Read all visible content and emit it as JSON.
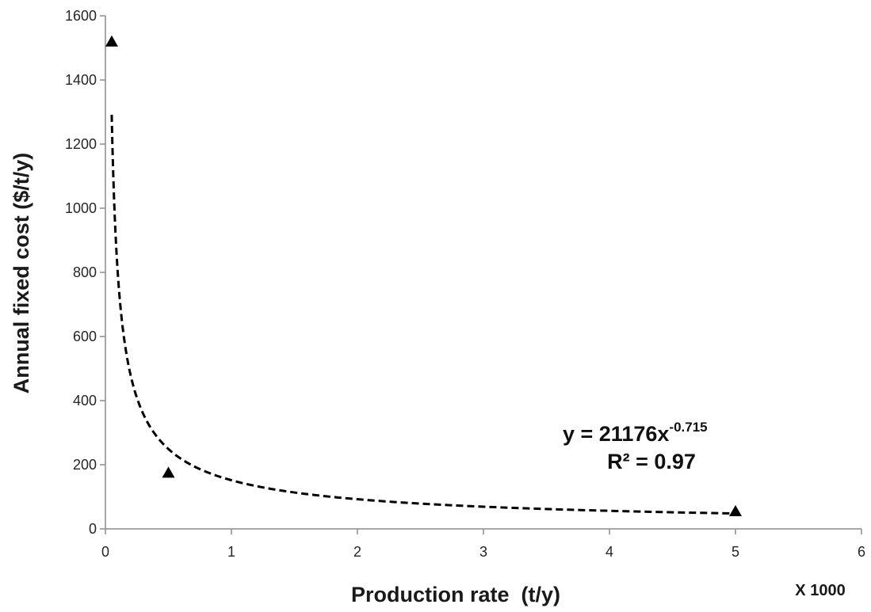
{
  "chart_data": {
    "type": "scatter",
    "xlabel": "Production rate  (t/y)",
    "ylabel": "Annual fixed cost ($/t/y)",
    "x_multiplier_label": "X 1000",
    "xlim": [
      0,
      6
    ],
    "ylim": [
      0,
      1600
    ],
    "x_ticks": [
      0,
      1,
      2,
      3,
      4,
      5,
      6
    ],
    "y_ticks": [
      0,
      200,
      400,
      600,
      800,
      1000,
      1200,
      1400,
      1600
    ],
    "grid": false,
    "series": [
      {
        "marker": "triangle",
        "x": [
          0.05,
          0.5,
          5.0
        ],
        "y": [
          1520,
          175,
          55
        ],
        "color": "#000000"
      }
    ],
    "trendline": {
      "type": "power",
      "coefficient": 21176,
      "exponent": -0.715,
      "x_range": [
        0.05,
        5.0
      ],
      "style": "dashed",
      "color": "#000000",
      "equation_main": "y = 21176x",
      "equation_exponent": "-0.715",
      "r_squared_label": "R² = 0.97"
    }
  }
}
